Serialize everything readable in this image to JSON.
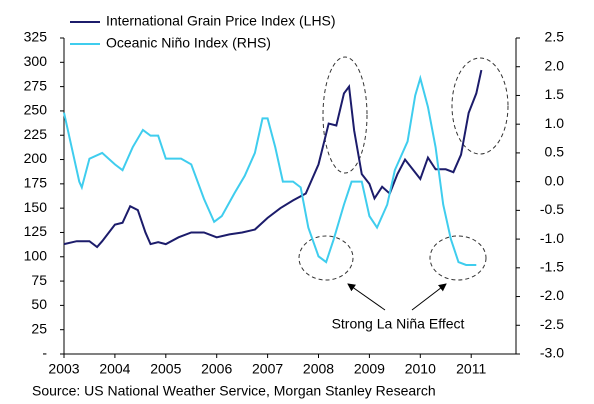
{
  "chart_data": {
    "type": "line",
    "series": [
      {
        "name": "International Grain Price Index (LHS)",
        "color": "#1c1c6b",
        "axis": "y",
        "x": [
          2003,
          2003.25,
          2003.5,
          2003.65,
          2003.75,
          2004,
          2004.15,
          2004.3,
          2004.45,
          2004.6,
          2004.7,
          2004.85,
          2005,
          2005.25,
          2005.5,
          2005.75,
          2006,
          2006.25,
          2006.5,
          2006.75,
          2007,
          2007.25,
          2007.5,
          2007.75,
          2008,
          2008.2,
          2008.35,
          2008.5,
          2008.6,
          2008.7,
          2008.85,
          2009,
          2009.1,
          2009.25,
          2009.4,
          2009.55,
          2009.7,
          2009.85,
          2010,
          2010.15,
          2010.3,
          2010.5,
          2010.65,
          2010.8,
          2010.95,
          2011.1,
          2011.2
        ],
        "values": [
          113,
          116,
          116,
          110,
          116,
          133,
          135,
          152,
          148,
          125,
          113,
          115,
          113,
          120,
          125,
          125,
          120,
          123,
          125,
          128,
          140,
          150,
          158,
          165,
          195,
          237,
          235,
          268,
          275,
          230,
          185,
          175,
          160,
          172,
          165,
          185,
          200,
          190,
          180,
          202,
          190,
          190,
          187,
          205,
          248,
          268,
          292
        ]
      },
      {
        "name": "Oceanic Niño Index (RHS)",
        "color": "#3fcdee",
        "axis": "y2",
        "x": [
          2003,
          2003.15,
          2003.3,
          2003.35,
          2003.5,
          2003.75,
          2004,
          2004.15,
          2004.35,
          2004.55,
          2004.7,
          2004.85,
          2005,
          2005.3,
          2005.5,
          2005.75,
          2005.95,
          2006.1,
          2006.35,
          2006.55,
          2006.75,
          2006.9,
          2007,
          2007.15,
          2007.3,
          2007.5,
          2007.65,
          2007.8,
          2008,
          2008.15,
          2008.3,
          2008.5,
          2008.65,
          2008.85,
          2009,
          2009.15,
          2009.35,
          2009.5,
          2009.75,
          2009.9,
          2010,
          2010.15,
          2010.3,
          2010.45,
          2010.6,
          2010.75,
          2010.9,
          2011.1
        ],
        "values": [
          1.2,
          0.6,
          0.0,
          -0.1,
          0.4,
          0.5,
          0.3,
          0.2,
          0.6,
          0.9,
          0.8,
          0.8,
          0.4,
          0.4,
          0.3,
          -0.3,
          -0.7,
          -0.6,
          -0.2,
          0.1,
          0.5,
          1.1,
          1.1,
          0.6,
          0.0,
          0.0,
          -0.1,
          -0.8,
          -1.3,
          -1.4,
          -1.0,
          -0.4,
          0.0,
          0.0,
          -0.6,
          -0.8,
          -0.4,
          0.2,
          0.7,
          1.5,
          1.8,
          1.3,
          0.6,
          -0.4,
          -1.0,
          -1.4,
          -1.45,
          -1.45
        ]
      }
    ],
    "xlim": [
      2003,
      2011.88
    ],
    "xticks": [
      2003,
      2004,
      2005,
      2006,
      2007,
      2008,
      2009,
      2010,
      2011
    ],
    "ylim": [
      0,
      325
    ],
    "yticks": [
      {
        "value": 0,
        "label": "-"
      },
      25,
      50,
      75,
      100,
      125,
      150,
      175,
      200,
      225,
      250,
      275,
      300,
      325
    ],
    "y2lim": [
      -3.0,
      2.5
    ],
    "y2ticks": [
      {
        "value": -3.0,
        "label": "-3.0"
      },
      {
        "value": -2.5,
        "label": "-2.5"
      },
      {
        "value": -2.0,
        "label": "-2.0"
      },
      {
        "value": -1.5,
        "label": "-1.5"
      },
      {
        "value": -1.0,
        "label": "-1.0"
      },
      {
        "value": -0.5,
        "label": "-0.5"
      },
      {
        "value": 0.0,
        "label": "0.0"
      },
      {
        "value": 0.5,
        "label": "0.5"
      },
      {
        "value": 1.0,
        "label": "1.0"
      },
      {
        "value": 1.5,
        "label": "1.5"
      },
      {
        "value": 2.0,
        "label": "2.0"
      },
      {
        "value": 2.5,
        "label": "2.5"
      }
    ],
    "annotation": "Strong La Niña Effect",
    "source": "Source: US National Weather Service, Morgan Stanley Research",
    "grid": false,
    "legend": "top-left"
  }
}
